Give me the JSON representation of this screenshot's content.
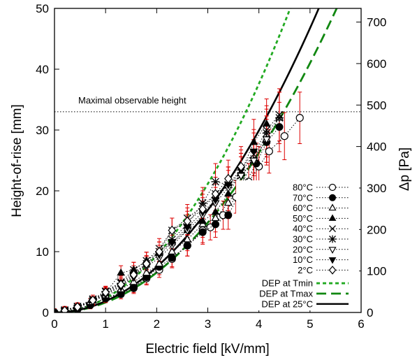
{
  "chart_data": {
    "type": "scatter",
    "xlabel": "Electric field [kV/mm]",
    "ylabel": "Height-of-rise [mm]",
    "y2label": "Δp [Pa]",
    "xlim": [
      0,
      6
    ],
    "ylim": [
      0,
      50
    ],
    "y2lim": [
      0,
      733
    ],
    "xticks": [
      "0",
      "1",
      "2",
      "3",
      "4",
      "5",
      "6"
    ],
    "yticks": [
      "0",
      "10",
      "20",
      "30",
      "40",
      "50"
    ],
    "y2ticks": [
      {
        "value": 0,
        "label": "0"
      },
      {
        "value": 100,
        "label": "100"
      },
      {
        "value": 200,
        "label": "200"
      },
      {
        "value": 300,
        "label": "300"
      },
      {
        "value": 400,
        "label": "400"
      },
      {
        "value": 500,
        "label": "500"
      },
      {
        "value": 600,
        "label": "600"
      },
      {
        "value": 700,
        "label": "700"
      }
    ],
    "annotation": {
      "text": "Maximal observable height",
      "y": 33
    },
    "legend_position": "bottom-right",
    "series": [
      {
        "name": "80°C",
        "marker": "circle-open",
        "x": [
          0,
          0.2,
          0.45,
          0.7,
          1.0,
          1.3,
          1.55,
          1.8,
          2.05,
          2.3,
          2.6,
          2.9,
          3.05,
          3.3,
          3.55,
          3.8,
          4.0,
          4.2,
          4.5,
          4.8
        ],
        "y": [
          0,
          0.2,
          0.5,
          1.3,
          2.3,
          3.3,
          4.2,
          5.6,
          7.0,
          8.8,
          11.0,
          13.5,
          14.0,
          16.0,
          19.0,
          21.5,
          24.0,
          26.5,
          29.0,
          32.0
        ]
      },
      {
        "name": "70°C",
        "marker": "circle-filled",
        "x": [
          0,
          0.2,
          0.45,
          0.7,
          1.0,
          1.3,
          1.55,
          1.8,
          2.05,
          2.3,
          2.6,
          2.9,
          3.15,
          3.4,
          3.65,
          3.95,
          4.15,
          4.4
        ],
        "y": [
          0,
          0.2,
          0.6,
          1.2,
          2.4,
          3.0,
          4.0,
          5.8,
          7.5,
          9.0,
          11.0,
          13.2,
          14.5,
          16.0,
          20.0,
          24.5,
          28.0,
          30.5
        ]
      },
      {
        "name": "60°C",
        "marker": "triangle-open",
        "x": [
          0.2,
          0.45,
          0.7,
          1.0,
          1.3,
          1.55,
          1.8,
          2.05,
          2.3,
          2.6,
          2.9,
          3.15,
          3.4,
          3.65,
          3.9,
          4.15,
          4.4
        ],
        "y": [
          0.3,
          0.8,
          1.7,
          2.8,
          3.8,
          5.0,
          6.5,
          8.0,
          10.0,
          12.0,
          14.5,
          15.5,
          18.0,
          21.0,
          25.0,
          28.5,
          32.0
        ]
      },
      {
        "name": "50°C",
        "marker": "triangle-filled",
        "x": [
          0.2,
          0.45,
          0.75,
          1.0,
          1.3,
          1.55,
          1.8,
          2.05,
          2.3,
          2.6,
          2.9,
          3.15,
          3.4,
          3.65,
          3.9,
          4.15
        ],
        "y": [
          0.3,
          1.0,
          2.0,
          3.2,
          6.5,
          7.0,
          8.5,
          10.0,
          11.5,
          13.5,
          15.0,
          16.5,
          19.5,
          23.0,
          28.0,
          31.0
        ]
      },
      {
        "name": "40°C",
        "marker": "x",
        "x": [
          0.2,
          0.45,
          0.75,
          1.0,
          1.3,
          1.55,
          1.8,
          2.05,
          2.3,
          2.6,
          2.9,
          3.15,
          3.4,
          3.65,
          3.9,
          4.15,
          4.4
        ],
        "y": [
          0.4,
          1.0,
          2.2,
          3.5,
          5.0,
          7.0,
          8.5,
          10.5,
          13.5,
          15.5,
          17.5,
          19.5,
          21.0,
          23.0,
          26.0,
          30.0,
          32.5
        ]
      },
      {
        "name": "30°C",
        "marker": "star",
        "x": [
          0.2,
          0.45,
          0.75,
          1.0,
          1.3,
          1.55,
          1.8,
          2.05,
          2.3,
          2.6,
          2.9,
          3.15,
          3.4,
          3.65,
          3.9,
          4.15,
          4.4
        ],
        "y": [
          0.3,
          0.9,
          2.0,
          3.4,
          4.8,
          6.5,
          8.0,
          10.0,
          12.0,
          14.5,
          18.0,
          21.5,
          21.0,
          22.5,
          25.0,
          29.5,
          32.0
        ]
      },
      {
        "name": "20°C",
        "marker": "triangle-down-open",
        "x": [
          0.2,
          0.45,
          0.75,
          1.0,
          1.3,
          1.55,
          1.8,
          2.05,
          2.3,
          2.6,
          2.9,
          3.15,
          3.4,
          3.65,
          3.9,
          4.15
        ],
        "y": [
          0.3,
          0.8,
          1.8,
          3.0,
          4.2,
          5.8,
          7.5,
          9.0,
          11.0,
          13.5,
          16.0,
          18.0,
          20.5,
          22.5,
          25.0,
          28.5
        ]
      },
      {
        "name": "10°C",
        "marker": "triangle-down-filled",
        "x": [
          0.2,
          0.45,
          0.75,
          1.0,
          1.3,
          1.55,
          1.8,
          2.05,
          2.3,
          2.6,
          2.9,
          3.15,
          3.4,
          3.65,
          3.9
        ],
        "y": [
          0.3,
          0.8,
          1.9,
          3.1,
          4.4,
          6.0,
          7.8,
          9.5,
          11.5,
          14.0,
          16.5,
          18.5,
          21.0,
          23.5,
          26.5
        ]
      },
      {
        "name": "2°C",
        "marker": "diamond-open",
        "x": [
          0.2,
          0.45,
          0.75,
          1.0,
          1.3,
          1.55,
          1.8,
          2.05,
          2.3,
          2.6,
          2.9,
          3.15,
          3.4,
          3.65
        ],
        "y": [
          0.3,
          0.9,
          2.0,
          3.3,
          4.6,
          6.2,
          8.0,
          10.0,
          13.5,
          15.0,
          17.0,
          19.5,
          22.0,
          24.0
        ]
      }
    ],
    "curves": [
      {
        "name": "DEP at Tmin",
        "style": "short-dash",
        "color": "#22aa22",
        "coef": 2.35
      },
      {
        "name": "DEP at Tmax",
        "style": "long-dash",
        "color": "#118811",
        "coef": 1.64
      },
      {
        "name": "DEP at 25°C",
        "style": "solid",
        "color": "#000000",
        "coef": 1.87
      }
    ],
    "colors": {
      "data_markers": "#000000",
      "error_bars": "#dd0000",
      "threshold_line": "#000000"
    }
  }
}
